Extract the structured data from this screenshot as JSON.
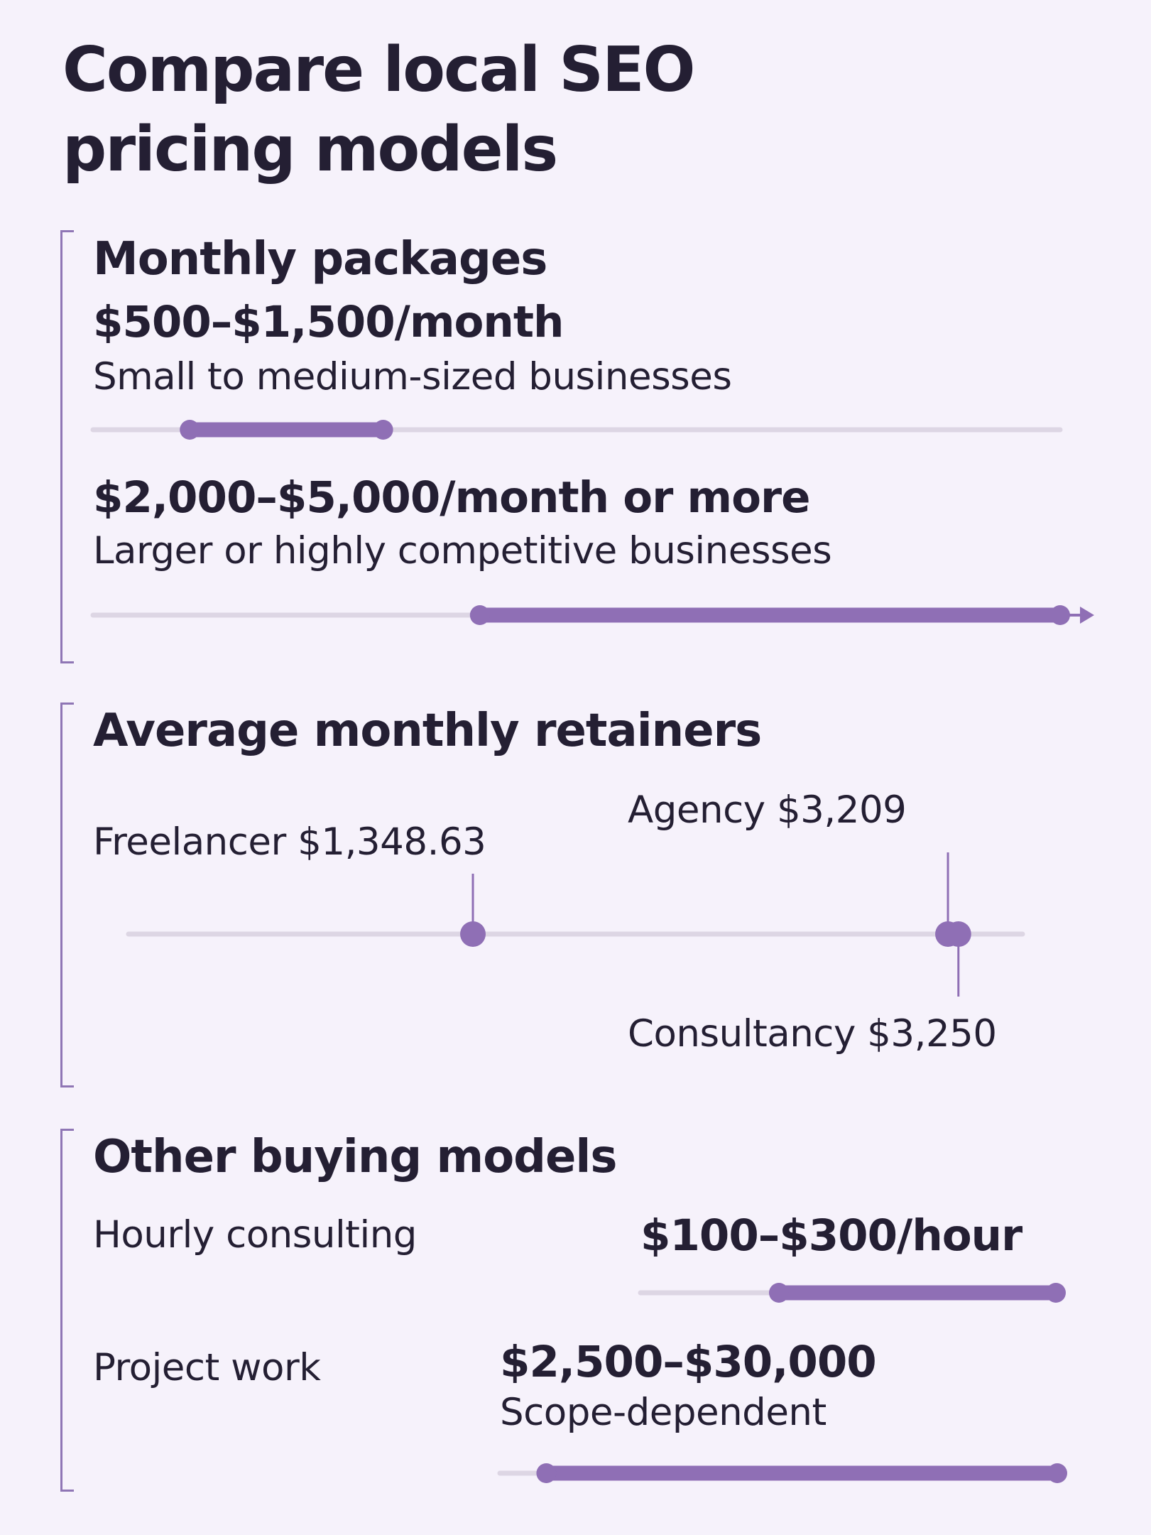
{
  "title": "Compare local SEO pricing models",
  "colors": {
    "background": "#f6f2fb",
    "accent": "#8f6fb5",
    "track": "#ddd6e4",
    "text": "#241f33",
    "bracket": "#8f76b5"
  },
  "sections": [
    {
      "heading": "Monthly packages",
      "rows": [
        {
          "price": "$500–$1,500/month",
          "audience": "Small to medium-sized businesses"
        },
        {
          "price": "$2,000–$5,000/month or more",
          "audience": "Larger or highly competitive businesses"
        }
      ]
    },
    {
      "heading": "Average monthly retainers",
      "points": [
        {
          "label": "Freelancer $1,348.63"
        },
        {
          "label": "Agency $3,209"
        },
        {
          "label": "Consultancy $3,250"
        }
      ]
    },
    {
      "heading": "Other buying models",
      "rows": [
        {
          "name": "Hourly consulting",
          "price": "$100–$300/hour"
        },
        {
          "name": "Project work",
          "price": "$2,500–$30,000",
          "note": "Scope-dependent"
        }
      ]
    }
  ],
  "chart_data": [
    {
      "type": "range",
      "title": "Monthly packages",
      "series": [
        {
          "name": "Small to medium-sized businesses",
          "min": 500,
          "max": 1500
        },
        {
          "name": "Larger or highly competitive businesses",
          "min": 2000,
          "max": 5000,
          "open_ended": true
        }
      ],
      "xlim": [
        0,
        5000
      ]
    },
    {
      "type": "scatter",
      "title": "Average monthly retainers",
      "points": [
        {
          "name": "Freelancer",
          "value": 1348.63
        },
        {
          "name": "Agency",
          "value": 3209
        },
        {
          "name": "Consultancy",
          "value": 3250
        }
      ],
      "xlim": [
        0,
        3500
      ]
    },
    {
      "type": "range",
      "title": "Hourly consulting",
      "series": [
        {
          "name": "Hourly consulting",
          "min": 100,
          "max": 300
        }
      ],
      "xlim": [
        0,
        300
      ]
    },
    {
      "type": "range",
      "title": "Project work",
      "series": [
        {
          "name": "Project work",
          "min": 2500,
          "max": 30000
        }
      ],
      "xlim": [
        0,
        30000
      ]
    }
  ]
}
